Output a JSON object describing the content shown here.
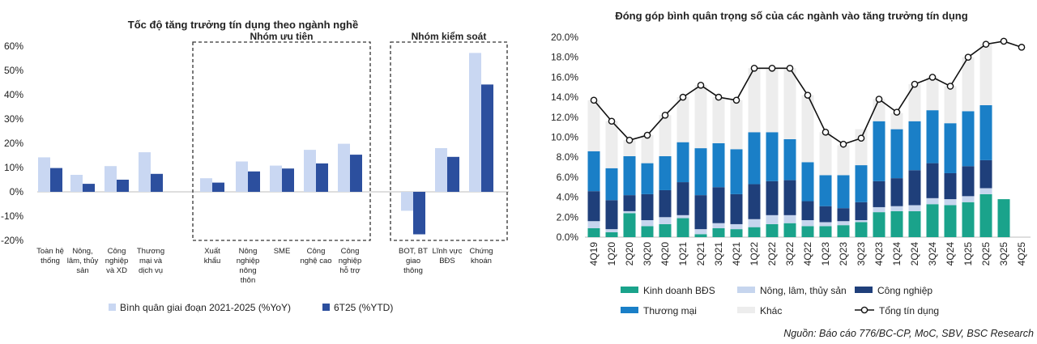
{
  "colors": {
    "light_bar": "#c9d7f2",
    "dark_bar": "#2c4f9e",
    "group_priority": "#1fa84f",
    "group_control": "#e31b1b",
    "kinh_doanh_bds": "#1aa38b",
    "nong_lam": "#c6d5ee",
    "cong_nghiep": "#1f3f7a",
    "thuong_mai": "#1a7fc7",
    "khac": "#ededed",
    "tong_line": "#111111"
  },
  "source": "Nguồn: Báo cáo 776/BC-CP, MoC, SBV, BSC Research",
  "chart_data": [
    {
      "type": "bar",
      "title": "Tốc độ tăng trưởng tín dụng theo ngành nghề",
      "ylim": [
        -20,
        60
      ],
      "yticks": [
        -20,
        -10,
        0,
        10,
        20,
        30,
        40,
        50,
        60
      ],
      "ytick_labels": [
        "-20%",
        "-10%",
        "0%",
        "10%",
        "20%",
        "30%",
        "40%",
        "50%",
        "60%"
      ],
      "categories": [
        [
          "Toàn hệ",
          "thống"
        ],
        [
          "Nông,",
          "lâm, thủy",
          "sản"
        ],
        [
          "Công",
          "nghiệp",
          "và XD"
        ],
        [
          "Thương",
          "mại và",
          "dịch vụ"
        ],
        [
          "Xuất",
          "khẩu"
        ],
        [
          "Nông",
          "nghiệp",
          "nông",
          "thôn"
        ],
        [
          "SME"
        ],
        [
          "Công",
          "nghệ cao"
        ],
        [
          "Công",
          "nghiệp",
          "hỗ trợ"
        ],
        [
          "BOT, BT",
          "giao",
          "thông"
        ],
        [
          "Lĩnh vực",
          "BĐS"
        ],
        [
          "Chứng",
          "khoán"
        ]
      ],
      "series": [
        {
          "name": "Bình quân giai đoạn 2021-2025 (%YoY)",
          "values": [
            14.2,
            7.0,
            10.6,
            16.3,
            5.6,
            12.5,
            10.8,
            17.3,
            19.8,
            -7.8,
            18.0,
            57.2
          ]
        },
        {
          "name": "6T25 (%YTD)",
          "values": [
            9.8,
            3.3,
            5.0,
            7.4,
            3.8,
            8.4,
            9.6,
            11.7,
            15.3,
            -17.5,
            14.4,
            44.2
          ]
        }
      ],
      "groups": [
        {
          "label": "Nhóm ưu tiên",
          "members": [
            4,
            5,
            6,
            7,
            8
          ]
        },
        {
          "label": "Nhóm kiểm soát",
          "members": [
            9,
            10,
            11
          ]
        }
      ]
    },
    {
      "type": "bar",
      "stacked": true,
      "title": "Đóng góp bình quân trọng số của các ngành vào tăng trưởng tín dụng",
      "ylim": [
        0,
        20
      ],
      "yticks": [
        0,
        2,
        4,
        6,
        8,
        10,
        12,
        14,
        16,
        18,
        20
      ],
      "ytick_labels": [
        "0.0%",
        "2.0%",
        "4.0%",
        "6.0%",
        "8.0%",
        "10.0%",
        "12.0%",
        "14.0%",
        "16.0%",
        "18.0%",
        "20.0%"
      ],
      "categories": [
        "4Q19",
        "1Q20",
        "2Q20",
        "3Q20",
        "4Q20",
        "1Q21",
        "2Q21",
        "3Q21",
        "4Q21",
        "1Q22",
        "2Q22",
        "3Q22",
        "4Q22",
        "1Q23",
        "2Q23",
        "3Q23",
        "4Q23",
        "1Q24",
        "2Q24",
        "3Q24",
        "4Q24",
        "1Q25",
        "2Q25",
        "3Q25",
        "4Q25"
      ],
      "series": [
        {
          "name": "Kinh doanh BĐS",
          "values": [
            0.9,
            0.5,
            2.4,
            1.1,
            1.3,
            1.9,
            0.3,
            0.9,
            0.8,
            1.0,
            1.3,
            1.4,
            1.1,
            1.1,
            1.2,
            1.5,
            2.5,
            2.6,
            2.6,
            3.3,
            3.2,
            3.5,
            4.3,
            3.8,
            null
          ]
        },
        {
          "name": "Nông, lâm, thủy sản",
          "values": [
            0.7,
            0.3,
            0.2,
            0.6,
            0.7,
            0.3,
            0.5,
            0.5,
            0.5,
            0.8,
            0.9,
            0.8,
            0.6,
            0.4,
            0.4,
            0.2,
            0.5,
            0.5,
            0.6,
            0.6,
            0.6,
            0.6,
            0.6,
            null,
            null
          ]
        },
        {
          "name": "Công nghiệp",
          "values": [
            3.0,
            2.9,
            1.6,
            2.6,
            2.7,
            3.3,
            3.4,
            3.6,
            3.0,
            3.5,
            3.4,
            3.5,
            1.9,
            1.6,
            1.3,
            1.8,
            2.6,
            2.8,
            3.5,
            3.5,
            2.6,
            3.0,
            2.8,
            null,
            null
          ]
        },
        {
          "name": "Thương mại",
          "values": [
            4.0,
            3.2,
            3.9,
            3.1,
            3.4,
            4.0,
            4.7,
            4.4,
            4.5,
            5.2,
            4.9,
            4.1,
            3.9,
            3.1,
            3.3,
            3.7,
            6.0,
            4.9,
            4.9,
            5.3,
            5.0,
            5.5,
            5.5,
            null,
            null
          ]
        },
        {
          "name": "Khác",
          "values": [
            5.1,
            4.7,
            1.6,
            2.8,
            4.1,
            4.5,
            6.3,
            4.6,
            4.9,
            6.4,
            6.4,
            7.1,
            6.7,
            4.3,
            3.0,
            3.6,
            2.2,
            1.6,
            3.7,
            3.3,
            3.7,
            5.4,
            6.1,
            null,
            null
          ]
        },
        {
          "name": "Tổng tín dụng",
          "type": "line",
          "values": [
            13.7,
            11.6,
            9.7,
            10.2,
            12.2,
            14.0,
            15.2,
            14.0,
            13.7,
            16.9,
            16.9,
            16.9,
            14.2,
            10.5,
            9.3,
            9.9,
            13.8,
            12.5,
            15.3,
            16.0,
            15.1,
            18.0,
            19.3,
            19.6,
            19.0
          ]
        }
      ],
      "legend": [
        {
          "label": "Kinh doanh BĐS",
          "kind": "bar"
        },
        {
          "label": "Nông, lâm, thủy sản",
          "kind": "bar"
        },
        {
          "label": "Công nghiệp",
          "kind": "bar"
        },
        {
          "label": "Thương mại",
          "kind": "bar"
        },
        {
          "label": "Khác",
          "kind": "bar"
        },
        {
          "label": "Tổng tín dụng",
          "kind": "line"
        }
      ]
    }
  ]
}
